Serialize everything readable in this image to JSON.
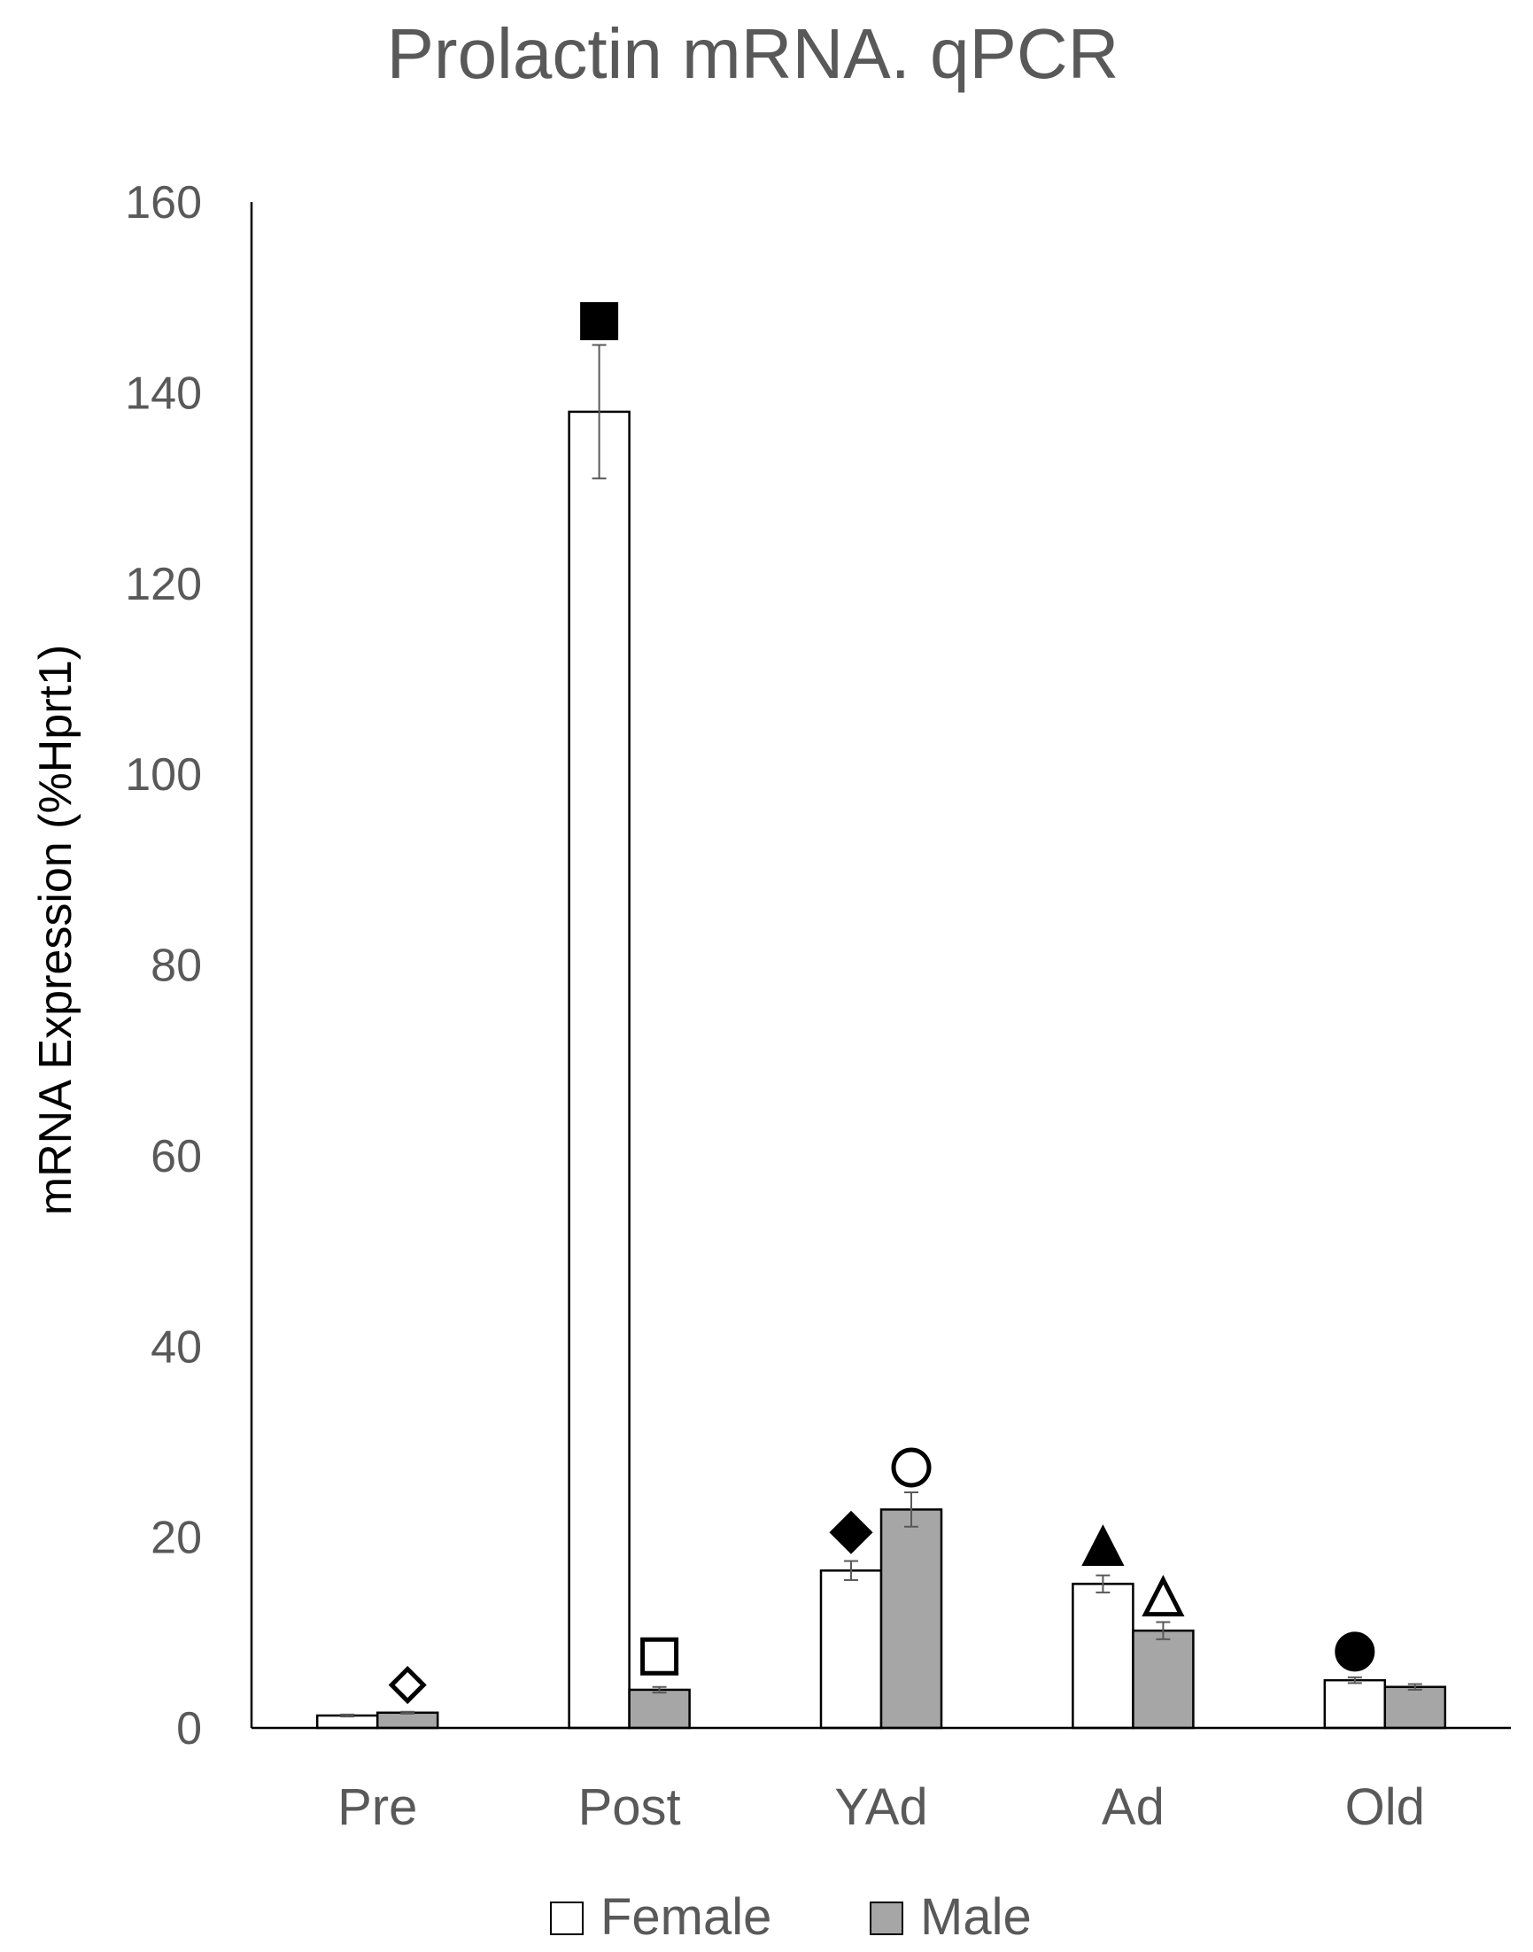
{
  "chart_data": {
    "type": "bar",
    "title": "Prolactin mRNA.  qPCR",
    "xlabel": "",
    "ylabel": "mRNA Expression (%Hprt1)",
    "ylim": [
      0,
      160
    ],
    "yticks": [
      0,
      20,
      40,
      60,
      80,
      100,
      120,
      140,
      160
    ],
    "grid": false,
    "legend": "bottom",
    "categories": [
      "Pre",
      "Post",
      "YAd",
      "Ad",
      "Old"
    ],
    "series": [
      {
        "name": "Female",
        "color": "#ffffff",
        "values": [
          1.3,
          138.0,
          16.5,
          15.1,
          5.0
        ],
        "errors": [
          0.1,
          7.0,
          1.0,
          0.9,
          0.3
        ]
      },
      {
        "name": "Male",
        "color": "#a6a6a6",
        "values": [
          1.6,
          4.0,
          22.9,
          10.2,
          4.3
        ],
        "errors": [
          0.1,
          0.3,
          1.8,
          0.9,
          0.3
        ]
      }
    ],
    "markers": [
      {
        "category": "Pre",
        "series": "Male",
        "shape": "diamond-open",
        "y": 4.5
      },
      {
        "category": "Post",
        "series": "Female",
        "shape": "square-filled",
        "y": 147.5
      },
      {
        "category": "Post",
        "series": "Male",
        "shape": "square-open",
        "y": 7.5
      },
      {
        "category": "YAd",
        "series": "Female",
        "shape": "diamond-filled",
        "y": 20.5
      },
      {
        "category": "YAd",
        "series": "Male",
        "shape": "circle-open",
        "y": 27.3
      },
      {
        "category": "Ad",
        "series": "Female",
        "shape": "triangle-filled",
        "y": 18.8
      },
      {
        "category": "Ad",
        "series": "Male",
        "shape": "triangle-open",
        "y": 13.5
      },
      {
        "category": "Old",
        "series": "Female",
        "shape": "circle-filled",
        "y": 8.0
      }
    ]
  }
}
